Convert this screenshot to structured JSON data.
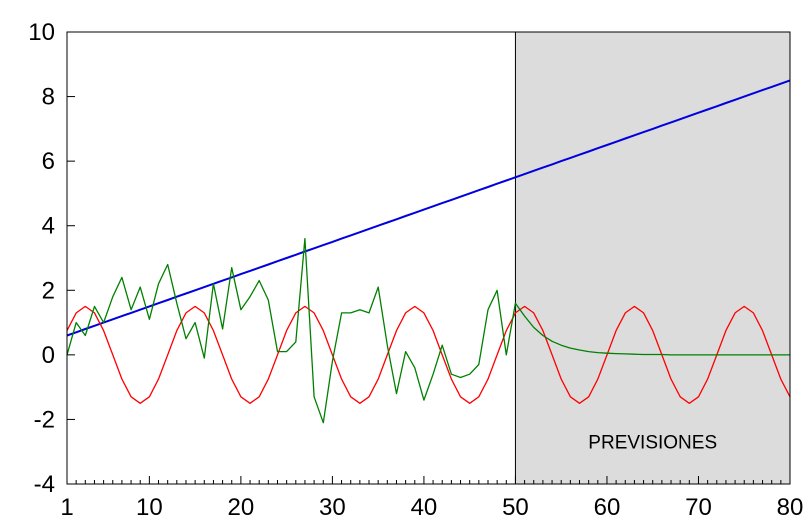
{
  "chart_data": {
    "type": "line",
    "xlim": [
      1,
      80
    ],
    "ylim": [
      -4,
      10
    ],
    "grid": false,
    "legend": "none",
    "x_ticks": [
      1,
      10,
      20,
      30,
      40,
      50,
      60,
      70,
      80
    ],
    "y_ticks": [
      -4,
      -2,
      0,
      2,
      4,
      6,
      8,
      10
    ],
    "x_tick_labels": [
      "1",
      "10",
      "20",
      "30",
      "40",
      "50",
      "60",
      "70",
      "80"
    ],
    "y_tick_labels": [
      "-4",
      "-2",
      "0",
      "2",
      "4",
      "6",
      "8",
      "10"
    ],
    "forecast_region": {
      "from": 50,
      "to": 80,
      "color": "#dcdcdc",
      "label": "PREVISIONES"
    },
    "x": [
      1,
      2,
      3,
      4,
      5,
      6,
      7,
      8,
      9,
      10,
      11,
      12,
      13,
      14,
      15,
      16,
      17,
      18,
      19,
      20,
      21,
      22,
      23,
      24,
      25,
      26,
      27,
      28,
      29,
      30,
      31,
      32,
      33,
      34,
      35,
      36,
      37,
      38,
      39,
      40,
      41,
      42,
      43,
      44,
      45,
      46,
      47,
      48,
      49,
      50,
      51,
      52,
      53,
      54,
      55,
      56,
      57,
      58,
      59,
      60,
      61,
      62,
      63,
      64,
      65,
      66,
      67,
      68,
      69,
      70,
      71,
      72,
      73,
      74,
      75,
      76,
      77,
      78,
      79,
      80
    ],
    "series": [
      {
        "color": "#0000e0",
        "values": [
          0.6,
          0.7,
          0.8,
          0.9,
          1.0,
          1.1,
          1.2,
          1.3,
          1.4,
          1.5,
          1.6,
          1.7,
          1.8,
          1.9,
          2.0,
          2.1,
          2.2,
          2.3,
          2.4,
          2.5,
          2.6,
          2.7,
          2.8,
          2.9,
          3.0,
          3.1,
          3.2,
          3.3,
          3.4,
          3.5,
          3.6,
          3.7,
          3.8,
          3.9,
          4.0,
          4.1,
          4.2,
          4.3,
          4.4,
          4.5,
          4.6,
          4.7,
          4.8,
          4.9,
          5.0,
          5.1,
          5.2,
          5.3,
          5.4,
          5.5,
          5.6,
          5.7,
          5.8,
          5.9,
          6.0,
          6.1,
          6.2,
          6.3,
          6.4,
          6.5,
          6.6,
          6.7,
          6.8,
          6.9,
          7.0,
          7.1,
          7.2,
          7.3,
          7.4,
          7.5,
          7.6,
          7.7,
          7.8,
          7.9,
          8.0,
          8.1,
          8.2,
          8.3,
          8.4,
          8.5
        ]
      },
      {
        "color": "#ff0000",
        "values": [
          0.75,
          1.3,
          1.5,
          1.3,
          0.75,
          0,
          -0.75,
          -1.3,
          -1.5,
          -1.3,
          -0.75,
          0,
          0.75,
          1.3,
          1.5,
          1.3,
          0.75,
          0,
          -0.75,
          -1.3,
          -1.5,
          -1.3,
          -0.75,
          0,
          0.75,
          1.3,
          1.5,
          1.3,
          0.75,
          0,
          -0.75,
          -1.3,
          -1.5,
          -1.3,
          -0.75,
          0,
          0.75,
          1.3,
          1.5,
          1.3,
          0.75,
          0,
          -0.75,
          -1.3,
          -1.5,
          -1.3,
          -0.75,
          0,
          0.75,
          1.3,
          1.5,
          1.3,
          0.75,
          0,
          -0.75,
          -1.3,
          -1.5,
          -1.3,
          -0.75,
          0,
          0.75,
          1.3,
          1.5,
          1.3,
          0.75,
          0,
          -0.75,
          -1.3,
          -1.5,
          -1.3,
          -0.75,
          0,
          0.75,
          1.3,
          1.5,
          1.3,
          0.75,
          0,
          -0.75,
          -1.3
        ]
      },
      {
        "color": "#008000",
        "values": [
          0.0,
          1.0,
          0.6,
          1.5,
          1.0,
          1.8,
          2.4,
          1.4,
          2.1,
          1.1,
          2.2,
          2.8,
          1.6,
          0.5,
          1.0,
          -0.1,
          2.2,
          0.8,
          2.7,
          1.4,
          1.8,
          2.3,
          1.7,
          0.1,
          0.1,
          0.4,
          3.6,
          -1.3,
          -2.1,
          -0.2,
          1.3,
          1.3,
          1.4,
          1.3,
          2.1,
          0.3,
          -1.2,
          0.1,
          -0.4,
          -1.4,
          -0.6,
          0.3,
          -0.6,
          -0.7,
          -0.6,
          -0.3,
          1.4,
          2.0,
          0.0,
          1.6,
          1.2,
          0.85,
          0.6,
          0.42,
          0.3,
          0.21,
          0.15,
          0.1,
          0.07,
          0.05,
          0.04,
          0.03,
          0.02,
          0.01,
          0.01,
          0.01,
          0.0,
          0.0,
          0.0,
          0.0,
          0.0,
          0.0,
          0.0,
          0.0,
          0.0,
          0.0,
          0.0,
          0.0,
          0.0,
          0.0
        ]
      }
    ]
  }
}
